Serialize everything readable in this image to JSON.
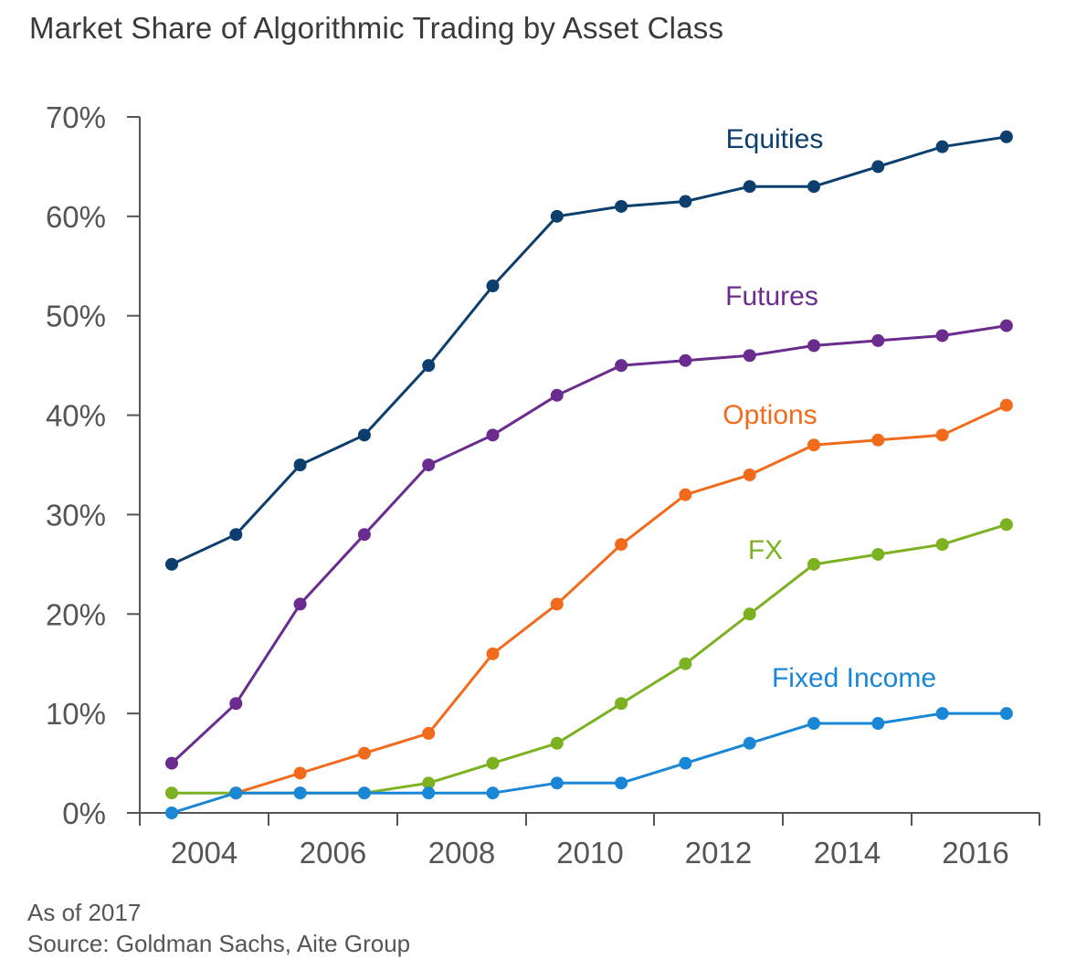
{
  "chart_data": {
    "type": "line",
    "title": "Market Share of Algorithmic Trading by Asset Class",
    "xlabel": "",
    "ylabel": "",
    "x": [
      2004,
      2005,
      2006,
      2007,
      2008,
      2009,
      2010,
      2011,
      2012,
      2013,
      2014,
      2015,
      2016,
      2017
    ],
    "x_tick_labels": [
      "2004",
      "2006",
      "2008",
      "2010",
      "2012",
      "2014",
      "2016"
    ],
    "y_tick_labels": [
      "0%",
      "10%",
      "20%",
      "30%",
      "40%",
      "50%",
      "60%",
      "70%"
    ],
    "ylim": [
      0,
      70
    ],
    "series": [
      {
        "name": "Equities",
        "color": "#0d3f6e",
        "values": [
          25,
          28,
          35,
          38,
          45,
          53,
          60,
          61,
          61.5,
          63,
          63,
          65,
          67,
          68
        ]
      },
      {
        "name": "Futures",
        "color": "#6a2c8e",
        "values": [
          5,
          11,
          21,
          28,
          35,
          38,
          42,
          45,
          45.5,
          46,
          47,
          47.5,
          48,
          49
        ]
      },
      {
        "name": "Options",
        "color": "#f26b1d",
        "values": [
          null,
          2,
          4,
          6,
          8,
          16,
          21,
          27,
          32,
          34,
          37,
          37.5,
          38,
          41
        ]
      },
      {
        "name": "FX",
        "color": "#7cb221",
        "values": [
          2,
          2,
          2,
          2,
          3,
          5,
          7,
          11,
          15,
          20,
          25,
          26,
          27,
          29
        ]
      },
      {
        "name": "Fixed Income",
        "color": "#1a86d6",
        "values": [
          0,
          2,
          2,
          2,
          2,
          2,
          3,
          3,
          5,
          7,
          9,
          9,
          10,
          10
        ]
      }
    ]
  },
  "footnote": {
    "as_of": "As of 2017",
    "source": "Source: Goldman Sachs, Aite Group"
  }
}
